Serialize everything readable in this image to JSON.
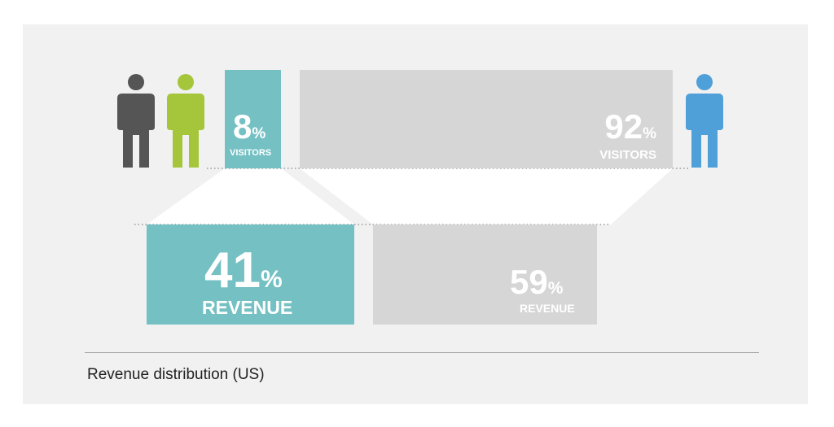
{
  "segments": {
    "small_visitors": {
      "value": "8",
      "unit": "%",
      "label": "VISITORS"
    },
    "large_visitors": {
      "value": "92",
      "unit": "%",
      "label": "VISITORS"
    },
    "small_revenue": {
      "value": "41",
      "unit": "%",
      "label": "REVENUE"
    },
    "large_revenue": {
      "value": "59",
      "unit": "%",
      "label": "REVENUE"
    }
  },
  "colors": {
    "teal": "#74c0c3",
    "grey_block": "#d6d6d6",
    "person_dark": "#555555",
    "person_green": "#a5c63b",
    "person_blue": "#4f9fd8"
  },
  "icons": [
    "person-dark-icon",
    "person-green-icon",
    "person-blue-icon"
  ],
  "caption": "Revenue distribution (US)"
}
